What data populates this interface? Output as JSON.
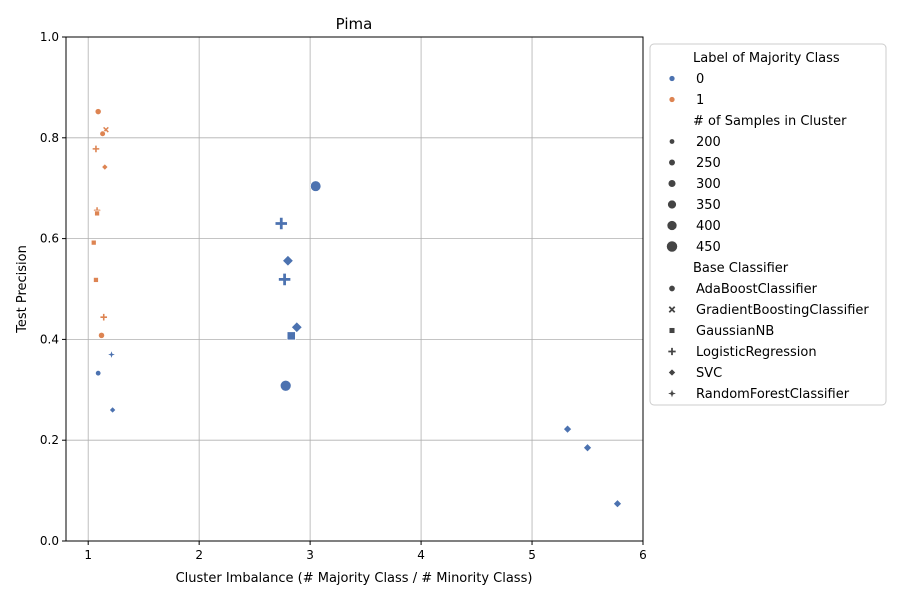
{
  "chart_data": {
    "type": "scatter",
    "title": "Pima",
    "xlabel": "Cluster Imbalance (# Majority Class / # Minority Class)",
    "ylabel": "Test Precision",
    "xlim": [
      0.8,
      6
    ],
    "ylim": [
      0,
      1
    ],
    "xticks": [
      1,
      2,
      3,
      4,
      5,
      6
    ],
    "yticks": [
      0.0,
      0.2,
      0.4,
      0.6,
      0.8,
      1.0
    ],
    "xtick_labels": [
      "1",
      "2",
      "3",
      "4",
      "5",
      "6"
    ],
    "ytick_labels": [
      "0.0",
      "0.2",
      "0.4",
      "0.6",
      "0.8",
      "1.0"
    ],
    "grid": true,
    "legend_position": "outside-right",
    "hue": {
      "title": "Label of Majority Class",
      "entries": [
        {
          "label": "0",
          "color": "#4c72b0"
        },
        {
          "label": "1",
          "color": "#dd8452"
        }
      ]
    },
    "size": {
      "title": "# of Samples in Cluster",
      "entries": [
        200,
        250,
        300,
        350,
        400,
        450
      ],
      "range": [
        150,
        470
      ]
    },
    "style": {
      "title": "Base Classifier",
      "entries": [
        {
          "label": "AdaBoostClassifier",
          "marker": "circle"
        },
        {
          "label": "GradientBoostingClassifier",
          "marker": "x"
        },
        {
          "label": "GaussianNB",
          "marker": "square"
        },
        {
          "label": "LogisticRegression",
          "marker": "plus"
        },
        {
          "label": "SVC",
          "marker": "diamond"
        },
        {
          "label": "RandomForestClassifier",
          "marker": "star"
        }
      ]
    },
    "points": [
      {
        "x": 1.09,
        "y": 0.852,
        "label": "1",
        "classifier": "AdaBoostClassifier",
        "samples": 230
      },
      {
        "x": 1.16,
        "y": 0.816,
        "label": "1",
        "classifier": "GradientBoostingClassifier",
        "samples": 200
      },
      {
        "x": 1.13,
        "y": 0.808,
        "label": "1",
        "classifier": "AdaBoostClassifier",
        "samples": 210
      },
      {
        "x": 1.07,
        "y": 0.778,
        "label": "1",
        "classifier": "LogisticRegression",
        "samples": 210
      },
      {
        "x": 1.15,
        "y": 0.742,
        "label": "1",
        "classifier": "SVC",
        "samples": 200
      },
      {
        "x": 1.08,
        "y": 0.656,
        "label": "1",
        "classifier": "LogisticRegression",
        "samples": 200
      },
      {
        "x": 1.08,
        "y": 0.65,
        "label": "1",
        "classifier": "GaussianNB",
        "samples": 200
      },
      {
        "x": 1.05,
        "y": 0.592,
        "label": "1",
        "classifier": "GaussianNB",
        "samples": 200
      },
      {
        "x": 1.07,
        "y": 0.518,
        "label": "1",
        "classifier": "GaussianNB",
        "samples": 200
      },
      {
        "x": 1.14,
        "y": 0.444,
        "label": "1",
        "classifier": "LogisticRegression",
        "samples": 210
      },
      {
        "x": 1.12,
        "y": 0.408,
        "label": "1",
        "classifier": "AdaBoostClassifier",
        "samples": 230
      },
      {
        "x": 1.21,
        "y": 0.37,
        "label": "0",
        "classifier": "RandomForestClassifier",
        "samples": 200
      },
      {
        "x": 1.09,
        "y": 0.333,
        "label": "0",
        "classifier": "AdaBoostClassifier",
        "samples": 200
      },
      {
        "x": 1.22,
        "y": 0.26,
        "label": "0",
        "classifier": "SVC",
        "samples": 200
      },
      {
        "x": 3.05,
        "y": 0.704,
        "label": "0",
        "classifier": "AdaBoostClassifier",
        "samples": 430
      },
      {
        "x": 2.74,
        "y": 0.63,
        "label": "0",
        "classifier": "LogisticRegression",
        "samples": 400
      },
      {
        "x": 2.8,
        "y": 0.556,
        "label": "0",
        "classifier": "SVC",
        "samples": 370
      },
      {
        "x": 2.77,
        "y": 0.519,
        "label": "0",
        "classifier": "LogisticRegression",
        "samples": 400
      },
      {
        "x": 2.88,
        "y": 0.424,
        "label": "0",
        "classifier": "SVC",
        "samples": 370
      },
      {
        "x": 2.83,
        "y": 0.407,
        "label": "0",
        "classifier": "GaussianNB",
        "samples": 360
      },
      {
        "x": 2.78,
        "y": 0.308,
        "label": "0",
        "classifier": "AdaBoostClassifier",
        "samples": 440
      },
      {
        "x": 5.32,
        "y": 0.222,
        "label": "0",
        "classifier": "SVC",
        "samples": 270
      },
      {
        "x": 5.5,
        "y": 0.185,
        "label": "0",
        "classifier": "SVC",
        "samples": 270
      },
      {
        "x": 5.77,
        "y": 0.074,
        "label": "0",
        "classifier": "SVC",
        "samples": 270
      }
    ]
  }
}
